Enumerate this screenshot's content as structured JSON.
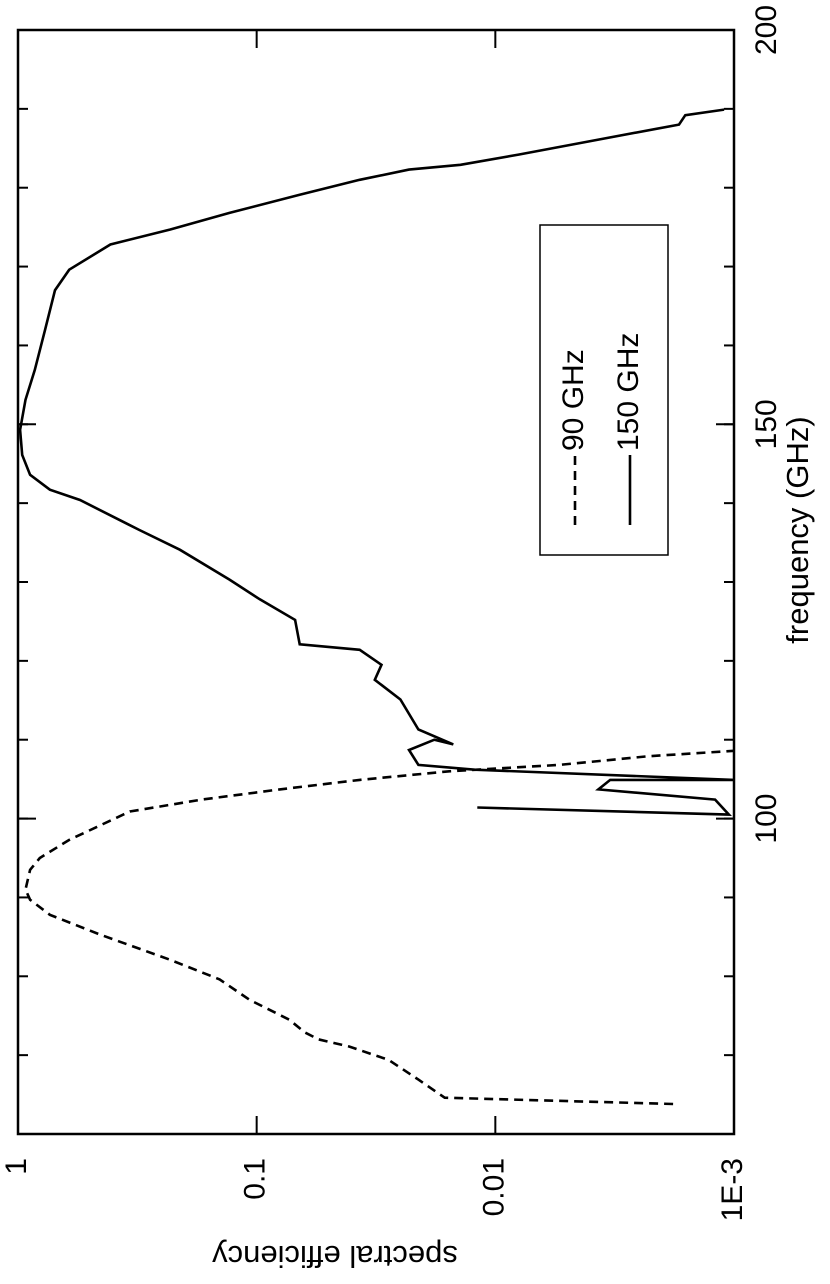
{
  "chart_data": {
    "type": "line",
    "xlabel": "frequency (GHz)",
    "ylabel": "spectral efficiency",
    "xlim": [
      60,
      200
    ],
    "xticks": [
      100,
      150,
      200
    ],
    "ylim": [
      0.001,
      1
    ],
    "yscale": "log",
    "yticks": [
      1,
      0.1,
      0.01,
      {
        "value": 0.001,
        "label": "1E-3"
      }
    ],
    "legend": "lower right",
    "series": [
      {
        "name": "90 GHz",
        "color": "#000000",
        "dash": "dashed",
        "x": [
          63.8,
          64.6,
          66.9,
          69.4,
          71.1,
          72,
          72.9,
          74.5,
          77,
          79.6,
          82.1,
          85.3,
          87.8,
          89.7,
          91,
          93.5,
          95,
          97.3,
          100.9,
          102.4,
          103.7,
          104.9,
          106,
          106.8,
          107.9,
          108.6
        ],
        "values": [
          0.0018,
          0.0163,
          0.021,
          0.028,
          0.041,
          0.055,
          0.063,
          0.073,
          0.107,
          0.143,
          0.231,
          0.454,
          0.735,
          0.89,
          0.93,
          0.89,
          0.81,
          0.61,
          0.34,
          0.17,
          0.08,
          0.037,
          0.0156,
          0.0054,
          0.0023,
          0.001
        ]
      },
      {
        "name": "150 GHz",
        "color": "#000000",
        "dash": "solid",
        "x": [
          101.4,
          100.5,
          102.4,
          103.7,
          104.9,
          104.9,
          106.2,
          106.8,
          108.7,
          110,
          109.4,
          111.3,
          115.1,
          117.6,
          119.5,
          121.4,
          122.1,
          125.2,
          127.8,
          130.3,
          134.1,
          136.6,
          140.4,
          141.7,
          143.6,
          146.1,
          149.3,
          153.1,
          156.9,
          162,
          167,
          169.6,
          172.8,
          174.7,
          176.8,
          179.1,
          181,
          182.3,
          182.9,
          184.2,
          186.1,
          188,
          189.2,
          189.9
        ],
        "values": [
          0.0119,
          0.00105,
          0.0012,
          0.0037,
          0.0033,
          0.001,
          0.0122,
          0.021,
          0.023,
          0.018,
          0.015,
          0.021,
          0.025,
          0.032,
          0.03,
          0.037,
          0.066,
          0.069,
          0.097,
          0.13,
          0.21,
          0.31,
          0.55,
          0.735,
          0.89,
          0.96,
          0.98,
          0.93,
          0.85,
          0.77,
          0.7,
          0.61,
          0.41,
          0.23,
          0.13,
          0.066,
          0.037,
          0.023,
          0.014,
          0.008,
          0.0037,
          0.0017,
          0.0016,
          0.0011
        ]
      }
    ]
  }
}
